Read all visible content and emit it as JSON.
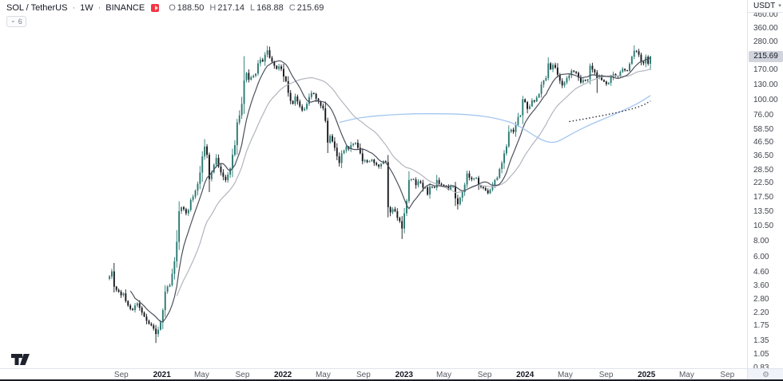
{
  "header": {
    "symbol": "SOL / TetherUS",
    "sep": "·",
    "interval": "1W",
    "exchange": "BINANCE",
    "logo_color": "#f23645",
    "ohlc": [
      {
        "letter": "O",
        "value": "188.50"
      },
      {
        "letter": "H",
        "value": "217.14"
      },
      {
        "letter": "L",
        "value": "168.88"
      },
      {
        "letter": "C",
        "value": "215.69"
      }
    ]
  },
  "toolbar": {
    "collapse_chip": {
      "chevron": "⌄",
      "count": "6"
    }
  },
  "price_scale": {
    "currency": "USDT",
    "currency_chevron": "▾",
    "last_price": "215.69",
    "ticks": [
      "460.00",
      "360.00",
      "280.00",
      "170.00",
      "130.00",
      "100.00",
      "76.00",
      "58.50",
      "46.50",
      "36.50",
      "28.50",
      "22.50",
      "17.50",
      "13.50",
      "10.50",
      "8.00",
      "6.00",
      "4.60",
      "3.60",
      "2.80",
      "2.20",
      "1.75",
      "1.35",
      "1.05",
      "0.83"
    ]
  },
  "time_scale": {
    "ticks": [
      {
        "label": "Sep",
        "week": 5.1,
        "bold": false
      },
      {
        "label": "2021",
        "week": 22.6,
        "bold": true
      },
      {
        "label": "May",
        "week": 39.7,
        "bold": false
      },
      {
        "label": "Sep",
        "week": 57.3,
        "bold": false
      },
      {
        "label": "2022",
        "week": 74.7,
        "bold": true
      },
      {
        "label": "May",
        "week": 92.0,
        "bold": false
      },
      {
        "label": "Sep",
        "week": 109.4,
        "bold": false
      },
      {
        "label": "2023",
        "week": 126.9,
        "bold": true
      },
      {
        "label": "May",
        "week": 144.0,
        "bold": false
      },
      {
        "label": "Sep",
        "week": 161.6,
        "bold": false
      },
      {
        "label": "2024",
        "week": 179.0,
        "bold": true
      },
      {
        "label": "May",
        "week": 196.3,
        "bold": false
      },
      {
        "label": "Sep",
        "week": 213.9,
        "bold": false
      },
      {
        "label": "2025",
        "week": 231.3,
        "bold": true
      },
      {
        "label": "May",
        "week": 248.6,
        "bold": false
      },
      {
        "label": "Sep",
        "week": 266.1,
        "bold": false
      }
    ],
    "gear_icon": "⚙"
  },
  "chart_data": {
    "type": "candlestick",
    "title": "SOL / TetherUS weekly candles on BINANCE",
    "symbol": "SOL/USDT",
    "interval": "1W",
    "scale": "logarithmic",
    "grid": false,
    "first_bar_date": "2020-07-27",
    "last_bar_date": "2025-01-13",
    "ylim": [
      0.81,
      590
    ],
    "visible_week_domain": [
      0,
      290
    ],
    "colors": {
      "up": "#2b7a73",
      "down": "#16181d",
      "sma_fast": "#4c505c",
      "sma_slow": "#b2b5be",
      "long_ma": "#a3c6f1",
      "dotted": "#2a2e39"
    },
    "last_candle": {
      "open": 188.5,
      "high": 217.14,
      "low": 168.88,
      "close": 215.69
    },
    "weekly_closes": [
      4.2,
      4.6,
      3.5,
      3.3,
      3.2,
      3.0,
      3.1,
      2.7,
      2.5,
      2.35,
      2.3,
      2.5,
      2.6,
      2.4,
      2.2,
      2.05,
      1.9,
      1.8,
      1.75,
      1.65,
      1.5,
      1.62,
      1.85,
      2.3,
      3.2,
      3.5,
      3.6,
      4.4,
      5.5,
      7.8,
      13.5,
      14.5,
      14.0,
      13.0,
      13.8,
      16.5,
      17.5,
      19.5,
      22,
      27,
      36,
      43,
      37,
      24,
      27,
      31,
      35,
      30,
      27,
      25,
      23.5,
      26,
      29,
      37,
      44,
      66,
      75,
      92,
      140,
      160,
      142,
      148,
      152,
      158,
      190,
      203,
      196,
      222,
      240,
      210,
      196,
      182,
      172,
      180,
      172,
      150,
      138,
      112,
      97,
      92,
      105,
      96,
      88,
      82,
      84,
      92,
      104,
      112,
      110,
      101,
      96,
      89,
      85,
      68,
      46,
      52,
      47,
      42,
      36,
      32,
      38,
      40,
      43,
      41,
      44,
      45,
      46,
      42,
      38,
      33,
      33.5,
      32.5,
      33,
      34,
      32,
      31,
      30,
      31.5,
      33,
      32.5,
      14.5,
      13.2,
      14,
      13.5,
      12,
      11.3,
      9.9,
      13,
      16.2,
      23.6,
      24,
      23.8,
      21.5,
      23,
      22.4,
      20.5,
      20.7,
      18.2,
      21,
      20.8,
      20.5,
      23.6,
      22,
      21.6,
      21.3,
      21,
      19.8,
      20.9,
      21.2,
      17,
      15.3,
      17.2,
      19,
      21.7,
      26.5,
      24.6,
      23.9,
      24.2,
      24.5,
      21.5,
      20.8,
      20.4,
      19.6,
      18.6,
      19.8,
      21.4,
      23.6,
      24.6,
      28.7,
      32,
      38,
      43,
      56,
      58,
      55.7,
      63,
      73,
      75,
      100,
      95,
      84,
      88,
      98,
      96,
      103,
      110,
      130,
      140,
      146,
      190,
      171,
      185,
      176,
      155,
      139,
      128,
      135,
      146,
      153,
      167,
      164,
      160,
      147,
      135,
      141,
      139,
      143,
      182,
      170,
      162,
      146,
      153,
      141,
      137,
      131,
      134,
      148,
      157,
      152,
      150,
      163,
      172,
      168,
      166,
      188,
      214,
      238,
      236,
      222,
      196,
      190,
      214,
      188.5,
      215.69
    ],
    "candle_overrides": {
      "20": {
        "low": 1.28
      },
      "41": {
        "high": 49
      },
      "58": {
        "high": 216
      },
      "68": {
        "high": 260
      },
      "120": {
        "low": 12.1
      },
      "126": {
        "low": 8.2
      },
      "150": {
        "low": 13.9
      },
      "189": {
        "high": 211
      },
      "210": {
        "low": 112
      },
      "226": {
        "high": 262
      },
      "233": {
        "open": 188.5,
        "high": 217.14,
        "low": 168.88,
        "close": 215.69
      }
    },
    "overlays": [
      {
        "name": "sma-fast",
        "type": "sma",
        "window": 10
      },
      {
        "name": "sma-slow",
        "type": "sma",
        "window": 30
      },
      {
        "name": "long-ma-blue",
        "type": "line",
        "points": [
          [
            99,
            66
          ],
          [
            105,
            70.5
          ],
          [
            112,
            73.5
          ],
          [
            120,
            75.5
          ],
          [
            130,
            77
          ],
          [
            140,
            77.2
          ],
          [
            150,
            76.8
          ],
          [
            158,
            75
          ],
          [
            164,
            72.5
          ],
          [
            170,
            68.5
          ],
          [
            175,
            64
          ],
          [
            179,
            58
          ],
          [
            183,
            52
          ],
          [
            187,
            47.5
          ],
          [
            190,
            46
          ],
          [
            193,
            46.8
          ],
          [
            196,
            50
          ],
          [
            200,
            55
          ],
          [
            205,
            61
          ],
          [
            210,
            67
          ],
          [
            215,
            73
          ],
          [
            220,
            80
          ],
          [
            225,
            88
          ],
          [
            229,
            96
          ],
          [
            233,
            107
          ]
        ]
      },
      {
        "name": "dotted-navy",
        "type": "dotted-line",
        "points": [
          [
            198,
            67
          ],
          [
            205,
            70.5
          ],
          [
            212,
            74.5
          ],
          [
            219,
            79
          ],
          [
            226,
            85
          ],
          [
            230,
            90
          ],
          [
            233,
            97
          ]
        ]
      }
    ]
  }
}
